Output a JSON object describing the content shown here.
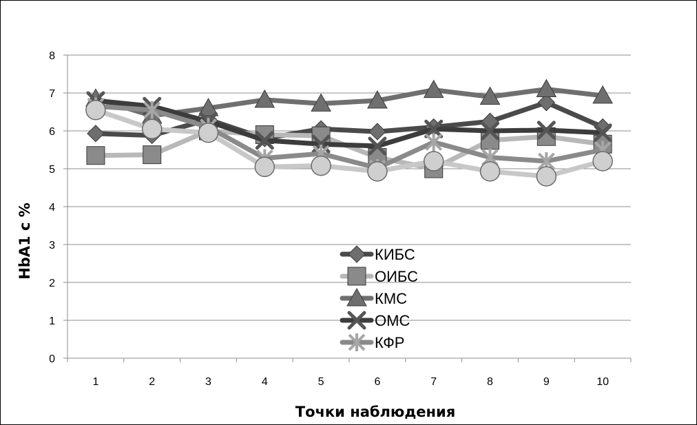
{
  "chart_data": {
    "type": "line",
    "title": "",
    "xlabel": "Точки наблюдения",
    "ylabel": "HbA1 с %",
    "categories": [
      "1",
      "2",
      "3",
      "4",
      "5",
      "6",
      "7",
      "8",
      "9",
      "10"
    ],
    "yticks": [
      "0",
      "1",
      "2",
      "3",
      "4",
      "5",
      "6",
      "7",
      "8"
    ],
    "ylim": [
      0,
      8
    ],
    "grid": "horizontal",
    "legend_position": "center",
    "series": [
      {
        "name": "КИБС",
        "marker": "diamond",
        "color": "#4a4a4a",
        "marker_color": "#6e6e6e",
        "values": [
          5.93,
          5.88,
          6.3,
          5.8,
          6.05,
          5.98,
          6.1,
          6.25,
          6.75,
          6.1
        ]
      },
      {
        "name": "ОИБС",
        "marker": "square",
        "color": "#b8b8b8",
        "marker_color": "#8a8a8a",
        "values": [
          5.35,
          5.37,
          6.0,
          5.9,
          5.87,
          5.3,
          5.0,
          5.75,
          5.85,
          5.65
        ]
      },
      {
        "name": "КМС",
        "marker": "triangle",
        "color": "#6f6f6f",
        "marker_color": "#6f6f6f",
        "values": [
          6.85,
          6.4,
          6.6,
          6.82,
          6.72,
          6.8,
          7.08,
          6.9,
          7.1,
          6.93
        ]
      },
      {
        "name": "ОМС",
        "marker": "x",
        "color": "#3c3c3c",
        "marker_color": "#555555",
        "values": [
          6.8,
          6.65,
          6.25,
          5.75,
          5.65,
          5.6,
          6.05,
          6.0,
          6.02,
          5.95
        ]
      },
      {
        "name": "КФР",
        "marker": "star",
        "color": "#8a8a8a",
        "marker_color": "#a6a6a6",
        "values": [
          6.65,
          6.55,
          6.1,
          5.28,
          5.4,
          5.02,
          5.7,
          5.3,
          5.2,
          5.5
        ]
      },
      {
        "name": "",
        "marker": "circle",
        "color": "#c8c8c8",
        "marker_color": "#cfcfcf",
        "values": [
          6.55,
          6.05,
          5.95,
          5.05,
          5.08,
          4.93,
          5.2,
          4.93,
          4.8,
          5.2
        ]
      }
    ]
  }
}
